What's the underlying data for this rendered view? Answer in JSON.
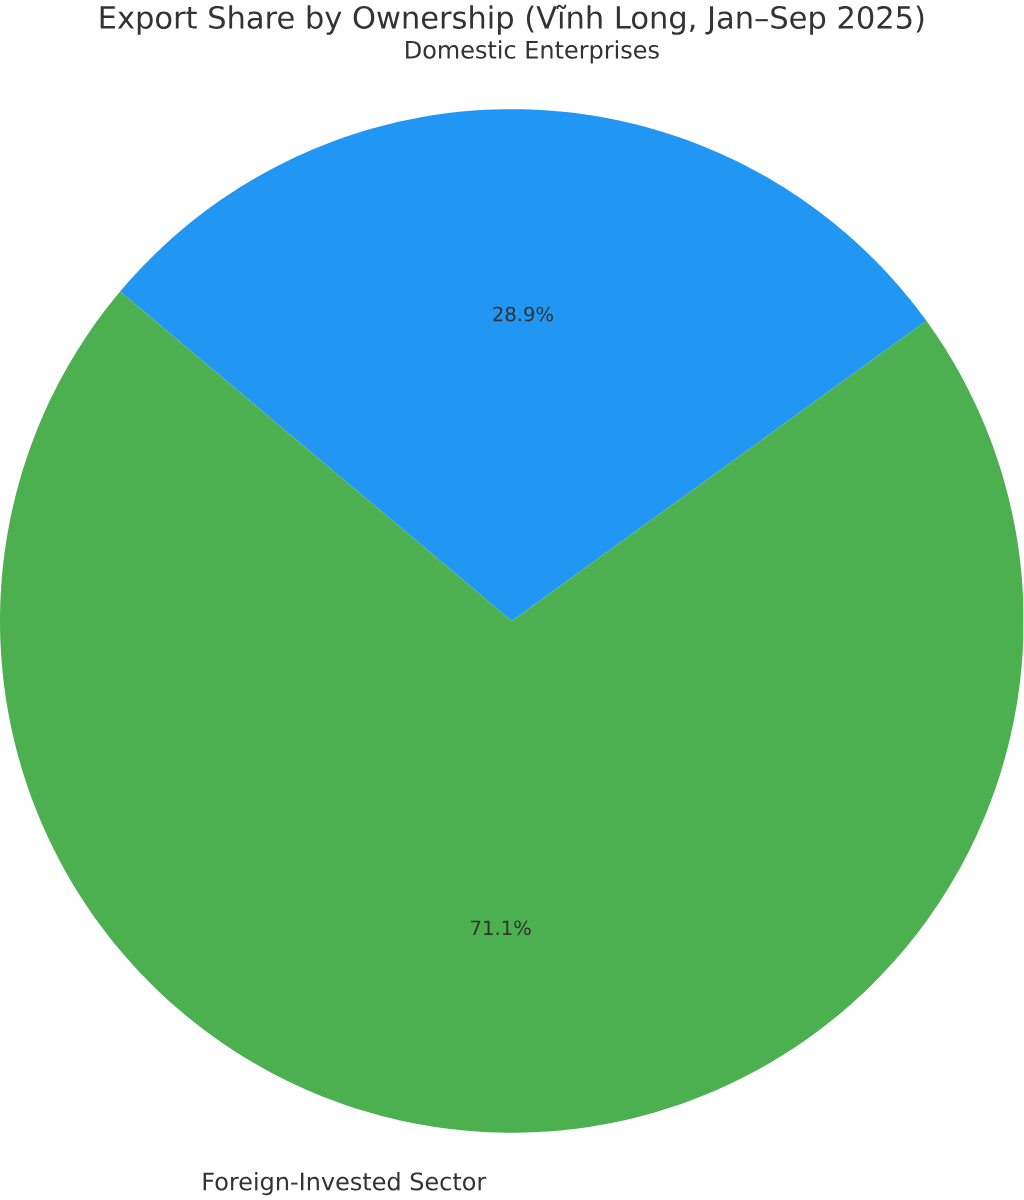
{
  "chart_data": {
    "type": "pie",
    "title": "Export Share by Ownership (Vĩnh Long, Jan–Sep 2025)",
    "categories": [
      "Domestic Enterprises",
      "Foreign-Invested Sector"
    ],
    "values": [
      28.9,
      71.1
    ],
    "colors": [
      "#2196f3",
      "#4caf50"
    ],
    "value_labels": [
      "28.9%",
      "71.1%"
    ]
  }
}
